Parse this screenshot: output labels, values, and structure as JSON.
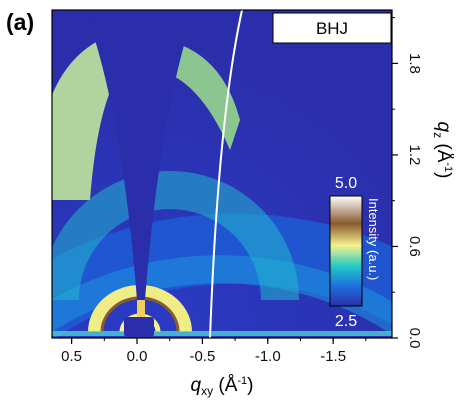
{
  "panel_label": "(a)",
  "chart_data": {
    "type": "heatmap",
    "title": "",
    "xlabel_prefix": "q",
    "xlabel_sub": "xy",
    "xlabel_unit": " (Å",
    "xlabel_exp": "-1",
    "xlabel_close": ")",
    "ylabel_prefix": "q",
    "ylabel_sub": "z",
    "ylabel_unit": " (Å",
    "ylabel_exp": "-1",
    "ylabel_close": ")",
    "x_axis_reversed": true,
    "xlim": [
      0.65,
      -1.95
    ],
    "ylim": [
      0.0,
      2.15
    ],
    "x_ticks": [
      0.5,
      0.0,
      -0.5,
      -1.0,
      -1.5
    ],
    "x_tick_labels": [
      "0.5",
      "0.0",
      "-0.5",
      "-1.0",
      "-1.5"
    ],
    "y_ticks": [
      0.0,
      0.6,
      1.2,
      1.8
    ],
    "y_tick_labels": [
      "0.0",
      "0.6",
      "1.2",
      "1.8"
    ],
    "y_axis_side": "right",
    "legend": {
      "text": "BHJ",
      "placement": "top-right"
    },
    "colorbar": {
      "title": "Intensity (a.u.)",
      "max_label": "5.0",
      "min_label": "2.5",
      "max": 5.0,
      "min": 2.5,
      "placement": "right"
    },
    "features": [
      {
        "kind": "ring",
        "q": 0.22,
        "note": "lamellar ring near the origin"
      },
      {
        "kind": "arc",
        "q": 0.45,
        "peak_angle_deg": 90
      },
      {
        "kind": "arc",
        "q": 1.75,
        "peak_angle_deg": 30
      },
      {
        "kind": "guide_line",
        "color": "#ffffff"
      }
    ],
    "colors": {
      "background": "#2b2eaa",
      "low": "#1f5fd6",
      "mid": "#1fc7c0",
      "high": "#f2f08a",
      "peak": "#8a5a2e",
      "max": "#ffffff"
    }
  }
}
